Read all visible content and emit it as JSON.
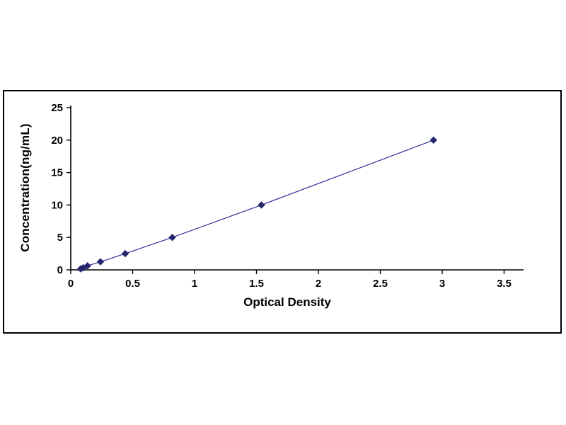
{
  "chart_data": {
    "type": "line",
    "title": "",
    "xlabel": "Optical Density",
    "ylabel": "Concentration(ng/mL)",
    "x": [
      0.08,
      0.1,
      0.135,
      0.24,
      0.44,
      0.82,
      1.54,
      2.93
    ],
    "y": [
      0.156,
      0.312,
      0.625,
      1.25,
      2.5,
      5,
      10,
      20
    ],
    "xlim": [
      0,
      3.5
    ],
    "ylim": [
      0,
      25
    ],
    "xticks": [
      "0",
      "0.5",
      "1",
      "1.5",
      "2",
      "2.5",
      "3",
      "3.5"
    ],
    "yticks": [
      "0",
      "5",
      "10",
      "15",
      "20",
      "25"
    ],
    "grid": false,
    "legend": "none",
    "marker": "diamond",
    "marker_color": "#26266e",
    "line_color": "#30309c",
    "axis_color": "#000000"
  }
}
